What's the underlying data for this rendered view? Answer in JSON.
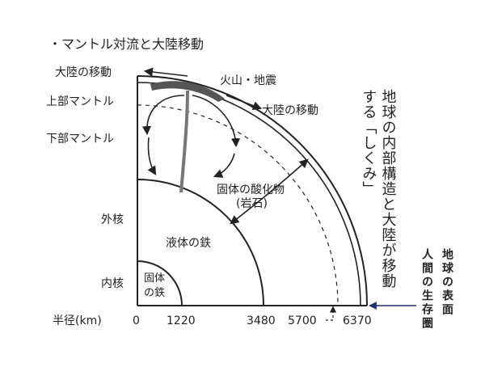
{
  "title": "・マントル対流と大陸移動",
  "labels": {
    "continent_move_left": "大陸の移動",
    "volcano_quake": "火山・地震",
    "continent_move_right": "大陸の移動",
    "upper_mantle": "上部マントル",
    "lower_mantle": "下部マントル",
    "solid_oxide": "固体の酸化物",
    "rock": "(岩石)",
    "outer_core": "外核",
    "liquid_iron": "液体の鉄",
    "inner_core": "内核",
    "solid_iron_1": "固体",
    "solid_iron_2": "の鉄"
  },
  "radius_axis": {
    "label": "半径(km)",
    "ticks": [
      "0",
      "1220",
      "3480",
      "5700",
      "6370"
    ]
  },
  "vertical_caption": {
    "col1": "地球の内部構造と大陸が移動",
    "col2": "する「しくみ」"
  },
  "surface_note": {
    "col1": "地球の表面",
    "col2": "人間の生存圏"
  },
  "colors": {
    "line": "#222222",
    "plate": "#555555",
    "arrow_blue": "#1f2f6e"
  }
}
